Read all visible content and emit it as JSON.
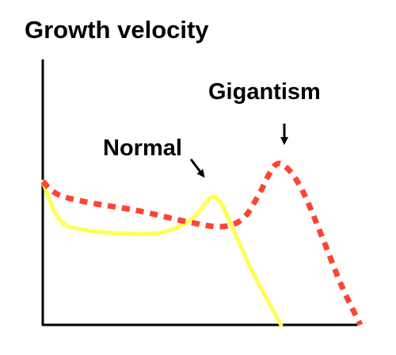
{
  "chart_data": {
    "type": "line",
    "ylabel": "Growth velocity",
    "xlabel": "",
    "grid": false,
    "legend": "none",
    "series": [
      {
        "name": "Normal",
        "color": "#ffff55",
        "style": "solid",
        "x": [
          0.0,
          0.05,
          0.12,
          0.25,
          0.38,
          0.47,
          0.53,
          0.56,
          0.6,
          0.66,
          0.75
        ],
        "y": [
          0.54,
          0.4,
          0.36,
          0.345,
          0.35,
          0.4,
          0.48,
          0.46,
          0.36,
          0.2,
          0.0
        ]
      },
      {
        "name": "Gigantism",
        "color": "#ff4433",
        "style": "dotted",
        "x": [
          0.0,
          0.05,
          0.15,
          0.3,
          0.45,
          0.56,
          0.63,
          0.68,
          0.73,
          0.77,
          0.82,
          0.88,
          0.94,
          1.0
        ],
        "y": [
          0.54,
          0.49,
          0.46,
          0.43,
          0.39,
          0.37,
          0.4,
          0.49,
          0.6,
          0.59,
          0.5,
          0.33,
          0.15,
          0.0
        ]
      }
    ],
    "annotations": [
      {
        "text": "Normal",
        "points_to_series": "Normal",
        "points_to_x": 0.53
      },
      {
        "text": "Gigantism",
        "points_to_series": "Gigantism",
        "points_to_x": 0.73
      }
    ]
  }
}
